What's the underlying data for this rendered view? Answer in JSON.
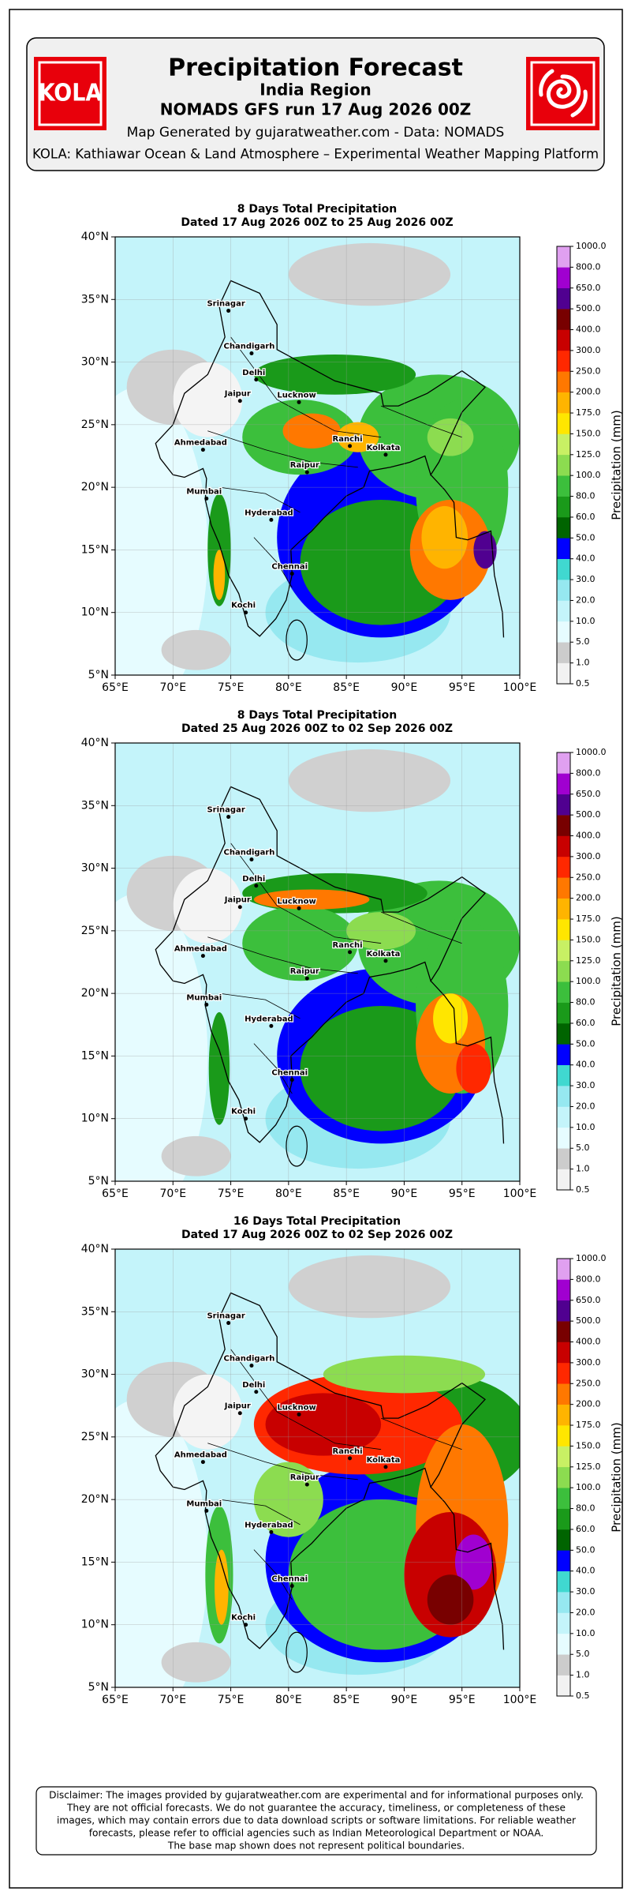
{
  "header": {
    "logo_left": "KOLA",
    "title": "Precipitation Forecast",
    "region": "India Region",
    "run": "NOMADS GFS run 17 Aug 2026 00Z",
    "generated": "Map Generated by gujaratweather.com - Data: NOMADS",
    "platform": "KOLA: Kathiawar Ocean & Land Atmosphere – Experimental Weather Mapping Platform"
  },
  "panels": [
    {
      "title": "8 Days Total Precipitation",
      "dates": "Dated 17 Aug 2026 00Z to 25 Aug 2026 00Z",
      "lon_ticks": [
        "65°E",
        "70°E",
        "75°E",
        "80°E",
        "85°E",
        "90°E",
        "95°E",
        "100°E"
      ],
      "lat_ticks": [
        "5°N",
        "10°N",
        "15°N",
        "20°N",
        "25°N",
        "30°N",
        "35°N",
        "40°N"
      ],
      "colorbar": {
        "label": "Precipitation (mm)",
        "levels": [
          "0.5",
          "1.0",
          "5.0",
          "10.0",
          "20.0",
          "30.0",
          "40.0",
          "50.0",
          "60.0",
          "80.0",
          "100.0",
          "125.0",
          "150.0",
          "175.0",
          "200.0",
          "250.0",
          "300.0",
          "400.0",
          "500.0",
          "650.0",
          "800.0",
          "1000.0"
        ]
      },
      "cities": [
        "Srinagar",
        "Chandigarh",
        "Delhi",
        "Jaipur",
        "Lucknow",
        "Ahmedabad",
        "Ranchi",
        "Kolkata",
        "Raipur",
        "Mumbai",
        "Hyderabad",
        "Chennai",
        "Kochi"
      ]
    },
    {
      "title": "8 Days Total Precipitation",
      "dates": "Dated 25 Aug 2026 00Z to 02 Sep 2026 00Z",
      "lon_ticks": [
        "65°E",
        "70°E",
        "75°E",
        "80°E",
        "85°E",
        "90°E",
        "95°E",
        "100°E"
      ],
      "lat_ticks": [
        "5°N",
        "10°N",
        "15°N",
        "20°N",
        "25°N",
        "30°N",
        "35°N",
        "40°N"
      ],
      "colorbar": {
        "label": "Precipitation (mm)",
        "levels": [
          "0.5",
          "1.0",
          "5.0",
          "10.0",
          "20.0",
          "30.0",
          "40.0",
          "50.0",
          "60.0",
          "80.0",
          "100.0",
          "125.0",
          "150.0",
          "175.0",
          "200.0",
          "250.0",
          "300.0",
          "400.0",
          "500.0",
          "650.0",
          "800.0",
          "1000.0"
        ]
      },
      "cities": [
        "Srinagar",
        "Chandigarh",
        "Delhi",
        "Jaipur",
        "Lucknow",
        "Ahmedabad",
        "Ranchi",
        "Kolkata",
        "Raipur",
        "Mumbai",
        "Hyderabad",
        "Chennai",
        "Kochi"
      ]
    },
    {
      "title": "16 Days Total Precipitation",
      "dates": "Dated 17 Aug 2026 00Z to 02 Sep 2026 00Z",
      "lon_ticks": [
        "65°E",
        "70°E",
        "75°E",
        "80°E",
        "85°E",
        "90°E",
        "95°E",
        "100°E"
      ],
      "lat_ticks": [
        "5°N",
        "10°N",
        "15°N",
        "20°N",
        "25°N",
        "30°N",
        "35°N",
        "40°N"
      ],
      "colorbar": {
        "label": "Precipitation (mm)",
        "levels": [
          "0.5",
          "1.0",
          "5.0",
          "10.0",
          "20.0",
          "30.0",
          "40.0",
          "50.0",
          "60.0",
          "80.0",
          "100.0",
          "125.0",
          "150.0",
          "175.0",
          "200.0",
          "250.0",
          "300.0",
          "400.0",
          "500.0",
          "650.0",
          "800.0",
          "1000.0"
        ]
      },
      "cities": [
        "Srinagar",
        "Chandigarh",
        "Delhi",
        "Jaipur",
        "Lucknow",
        "Ahmedabad",
        "Ranchi",
        "Kolkata",
        "Raipur",
        "Mumbai",
        "Hyderabad",
        "Chennai",
        "Kochi"
      ]
    }
  ],
  "disclaimer": [
    "Disclaimer: The images provided by gujaratweather.com are experimental and for informational purposes only.",
    "They are not official forecasts. We do not guarantee the accuracy, timeliness, or completeness of these",
    "images, which may contain errors due to data download scripts or software limitations. For reliable weather",
    "forecasts, please refer to official agencies such as Indian Meteorological Department or NOAA.",
    "The base map shown does not represent political boundaries."
  ]
}
